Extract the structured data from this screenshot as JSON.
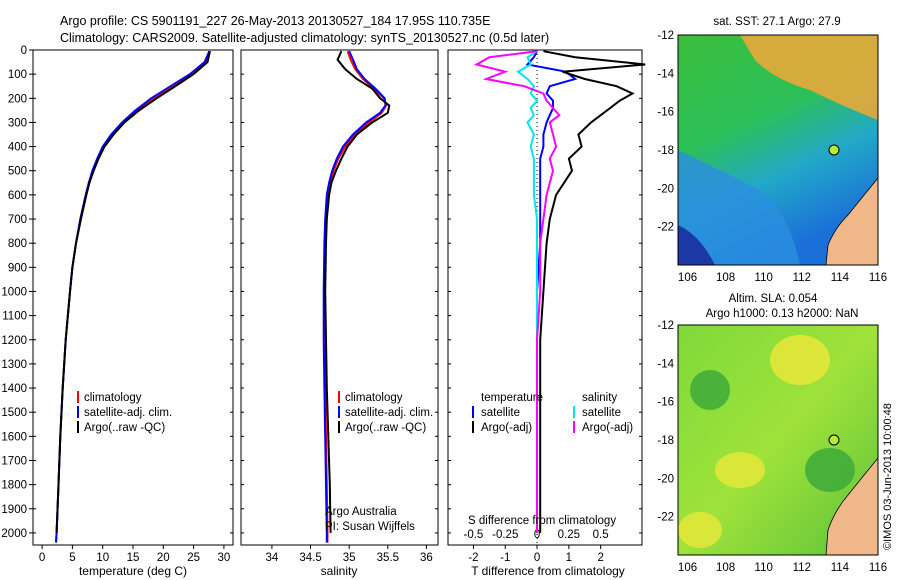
{
  "header": {
    "line1": "Argo profile: CS 5901191_227 26-May-2013 20130527_184 17.95S 110.735E",
    "line2": "Climatology: CARS2009. Satellite-adjusted climatology: synTS_20130527.nc (0.5d later)"
  },
  "colors": {
    "climatology": "#ff0000",
    "satellite": "#0000ff",
    "argo": "#000000",
    "s_satellite": "#00e5ee",
    "s_argo": "#ff00ff"
  },
  "chart_data": [
    {
      "type": "line",
      "panel": "temperature",
      "xlabel": "temperature (deg C)",
      "xlim": [
        -1.5,
        31.5
      ],
      "xticks": [
        0,
        5,
        10,
        15,
        20,
        25,
        30
      ],
      "ylim": [
        2050,
        0
      ],
      "yticks": [
        0,
        100,
        200,
        300,
        400,
        500,
        600,
        700,
        800,
        900,
        1000,
        1100,
        1200,
        1300,
        1400,
        1500,
        1600,
        1700,
        1800,
        1900,
        2000
      ],
      "legend": [
        "climatology",
        "satellite-adj. clim.",
        "Argo(..raw -QC)"
      ],
      "depth": [
        5,
        50,
        100,
        150,
        200,
        250,
        300,
        350,
        400,
        450,
        500,
        550,
        600,
        700,
        800,
        900,
        1000,
        1200,
        1400,
        1600,
        1800,
        2000,
        2040
      ],
      "series": [
        {
          "name": "climatology",
          "values": [
            27.6,
            27.0,
            24.8,
            21.8,
            18.6,
            15.8,
            13.4,
            11.6,
            10.2,
            9.2,
            8.4,
            7.8,
            7.3,
            6.4,
            5.6,
            5.0,
            4.6,
            3.9,
            3.4,
            3.0,
            2.7,
            2.4,
            2.3
          ]
        },
        {
          "name": "satellite-adj. clim.",
          "values": [
            27.6,
            26.8,
            24.4,
            21.2,
            18.0,
            15.4,
            13.2,
            11.4,
            10.0,
            9.1,
            8.3,
            7.7,
            7.2,
            6.3,
            5.6,
            5.0,
            4.6,
            3.9,
            3.4,
            3.0,
            2.7,
            2.4,
            2.3
          ]
        },
        {
          "name": "Argo(..raw -QC)",
          "values": [
            27.7,
            27.3,
            25.0,
            22.0,
            18.9,
            16.0,
            13.6,
            11.8,
            10.3,
            9.3,
            8.5,
            7.8,
            7.3,
            6.4,
            5.6,
            5.0,
            4.6,
            3.9,
            3.4,
            3.0,
            2.7,
            2.4,
            null
          ]
        }
      ]
    },
    {
      "type": "line",
      "panel": "salinity",
      "xlabel": "salinity",
      "xlim": [
        33.6,
        36.15
      ],
      "xticks": [
        34,
        34.5,
        35,
        35.5,
        36
      ],
      "ylim": [
        2050,
        0
      ],
      "legend": [
        "climatology",
        "satellite-adj. clim.",
        "Argo(..raw -QC)"
      ],
      "annotation": [
        "Argo Australia",
        "PI: Susan Wijffels"
      ],
      "depth": [
        5,
        40,
        80,
        120,
        160,
        200,
        230,
        260,
        300,
        350,
        400,
        450,
        500,
        550,
        600,
        700,
        800,
        1000,
        1200,
        1400,
        1600,
        1800,
        2000,
        2040
      ],
      "series": [
        {
          "name": "climatology",
          "values": [
            34.98,
            35.02,
            35.08,
            35.18,
            35.32,
            35.45,
            35.48,
            35.42,
            35.26,
            35.08,
            34.95,
            34.86,
            34.8,
            34.75,
            34.72,
            34.7,
            34.69,
            34.68,
            34.68,
            34.69,
            34.7,
            34.71,
            34.72,
            34.72
          ]
        },
        {
          "name": "satellite-adj. clim.",
          "values": [
            35.0,
            35.05,
            35.1,
            35.2,
            35.34,
            35.46,
            35.47,
            35.4,
            35.22,
            35.05,
            34.92,
            34.84,
            34.78,
            34.74,
            34.71,
            34.69,
            34.68,
            34.67,
            34.67,
            34.68,
            34.69,
            34.7,
            34.71,
            34.71
          ]
        },
        {
          "name": "Argo(..raw -QC)",
          "values": [
            34.9,
            34.85,
            34.95,
            35.1,
            35.3,
            35.4,
            35.52,
            35.5,
            35.3,
            35.1,
            34.98,
            34.9,
            34.83,
            34.77,
            34.74,
            34.71,
            34.7,
            34.69,
            34.7,
            34.71,
            34.73,
            34.75,
            34.76,
            null
          ]
        }
      ]
    },
    {
      "type": "line",
      "panel": "difference",
      "xlabel": "T difference from climatology",
      "x2label": "S difference from climatology",
      "xlim": [
        -2.8,
        3.3
      ],
      "xticks": [
        -2,
        -1,
        0,
        1,
        2
      ],
      "x2ticks": [
        "-0.5",
        "-0.25",
        "0",
        "0.25",
        "0.5"
      ],
      "ylim": [
        2050,
        0
      ],
      "legend_titles": [
        "temperature",
        "salinity"
      ],
      "legend": [
        "satellite",
        "Argo(-adj)",
        "satellite",
        "Argo(-adj)"
      ],
      "depth": [
        5,
        30,
        60,
        90,
        120,
        150,
        180,
        210,
        240,
        270,
        300,
        350,
        400,
        450,
        500,
        600,
        700,
        800,
        1000,
        1200,
        1400,
        1600,
        1800,
        2000
      ],
      "series": [
        {
          "name": "T satellite",
          "values": [
            0.0,
            -0.1,
            -0.3,
            0.9,
            1.2,
            0.4,
            0.3,
            0.5,
            0.5,
            0.4,
            0.3,
            0.2,
            0.2,
            0.1,
            0.1,
            0.1,
            0.1,
            0.1,
            0.0,
            0.0,
            0.0,
            0.0,
            0.0,
            0.0
          ]
        },
        {
          "name": "T Argo(-adj)",
          "values": [
            0.2,
            1.2,
            3.4,
            0.8,
            1.5,
            2.5,
            3.0,
            2.6,
            2.3,
            2.0,
            1.7,
            1.3,
            1.4,
            1.0,
            1.1,
            0.6,
            0.4,
            0.3,
            0.2,
            0.1,
            0.1,
            0.1,
            0.1,
            0.1
          ]
        },
        {
          "name": "S satellite",
          "values": [
            0.0,
            -0.3,
            -0.2,
            -0.6,
            -0.3,
            -0.1,
            -0.2,
            0.0,
            -0.2,
            -0.1,
            -0.3,
            -0.1,
            -0.2,
            -0.1,
            -0.1,
            -0.1,
            0.0,
            0.0,
            0.0,
            0.0,
            0.0,
            0.0,
            0.0,
            0.0
          ]
        },
        {
          "name": "S Argo(-adj)",
          "values": [
            0.0,
            -1.5,
            -1.9,
            -1.0,
            -1.6,
            -0.4,
            0.2,
            0.3,
            0.5,
            0.7,
            0.4,
            0.5,
            0.6,
            0.4,
            0.5,
            0.3,
            0.2,
            0.1,
            0.1,
            0.0,
            0.0,
            0.0,
            0.0,
            0.0
          ]
        }
      ]
    },
    {
      "type": "heatmap",
      "panel": "sst-map",
      "title": "sat. SST: 27.1  Argo: 27.9",
      "xlim": [
        105.5,
        116
      ],
      "ylim": [
        -24,
        -12
      ],
      "xticks": [
        106,
        108,
        110,
        112,
        114,
        116
      ],
      "yticks": [
        -22,
        -20,
        -18,
        -16,
        -14,
        -12
      ],
      "marker": {
        "lon": 110.735,
        "lat": -17.95
      }
    },
    {
      "type": "heatmap",
      "panel": "sla-map",
      "title": "Altim. SLA: 0.054",
      "subtitle": "Argo h1000: 0.13 h2000: NaN",
      "xlim": [
        105.5,
        116
      ],
      "ylim": [
        -24,
        -12
      ],
      "xticks": [
        106,
        108,
        110,
        112,
        114,
        116
      ],
      "yticks": [
        -22,
        -20,
        -18,
        -16,
        -14,
        -12
      ],
      "marker": {
        "lon": 110.735,
        "lat": -17.95
      }
    }
  ],
  "footer_vertical": "©IMOS 03-Jun-2013 10:00:48"
}
